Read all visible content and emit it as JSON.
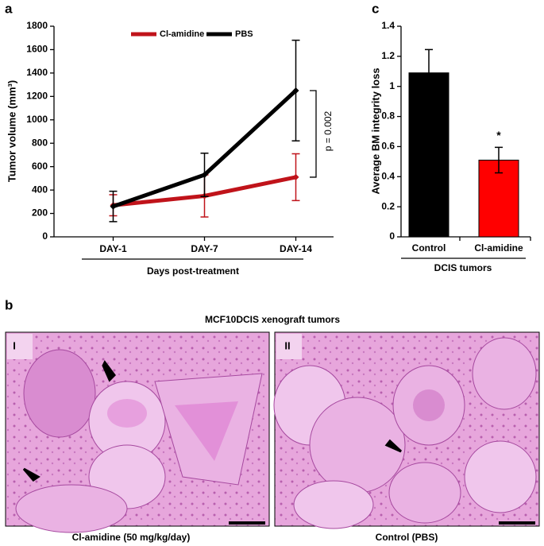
{
  "panel_labels": [
    "a",
    "b",
    "c"
  ],
  "chart_data": [
    {
      "type": "line",
      "y_label": "Tumor volume (mm³)",
      "x_label": "Days post-treatment",
      "categories": [
        "DAY-1",
        "DAY-7",
        "DAY-14"
      ],
      "series": [
        {
          "name": "Cl-amidine",
          "color": "#c0131a",
          "values": [
            270,
            350,
            510
          ],
          "errors": [
            90,
            180,
            200
          ]
        },
        {
          "name": "PBS",
          "color": "#000000",
          "values": [
            260,
            530,
            1250
          ],
          "errors": [
            130,
            185,
            430
          ]
        }
      ],
      "annotation": "p = 0.002",
      "ylim": [
        0,
        1800
      ],
      "yticks": [
        0,
        200,
        400,
        600,
        800,
        1000,
        1200,
        1400,
        1600,
        1800
      ],
      "legend": "top"
    },
    {
      "type": "bar",
      "y_label": "Average BM integrity loss",
      "x_label": "DCIS tumors",
      "categories": [
        "Control",
        "Cl-amidine"
      ],
      "values": [
        1.09,
        0.51
      ],
      "errors": [
        0.155,
        0.085
      ],
      "colors": [
        "#000000",
        "#ff0000"
      ],
      "annotation": "*",
      "ylim": [
        0,
        1.4
      ],
      "yticks": [
        0,
        0.2,
        0.4,
        0.6,
        0.8,
        1,
        1.2,
        1.4
      ]
    }
  ],
  "histology": {
    "title": "MCF10DCIS xenograft tumors",
    "images": [
      {
        "label": "I",
        "caption": "Cl-amidine (50 mg/kg/day)"
      },
      {
        "label": "II",
        "caption": "Control (PBS)"
      }
    ]
  }
}
